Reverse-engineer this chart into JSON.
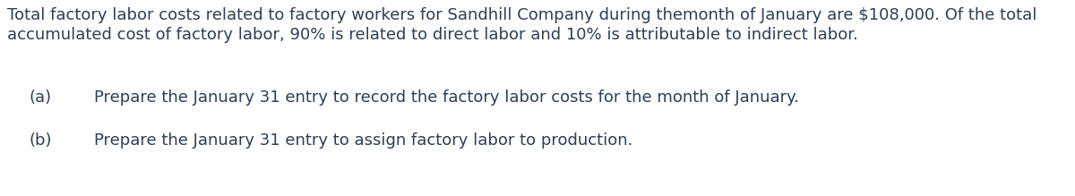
{
  "background_color": "#ffffff",
  "text_color": "#2d3f56",
  "paragraph_line1": "Total factory labor costs related to factory workers for Sandhill Company during themonth of January are $108,000. Of the total",
  "paragraph_line2": "accumulated cost of factory labor, 90% is related to direct labor and 10% is attributable to indirect labor.",
  "items": [
    {
      "label": "(a)",
      "text": "Prepare the January 31 entry to record the factory labor costs for the month of January."
    },
    {
      "label": "(b)",
      "text": "Prepare the January 31 entry to assign factory labor to production."
    }
  ],
  "font_size": 13.0,
  "figwidth": 12.0,
  "figheight": 2.19,
  "dpi": 100
}
